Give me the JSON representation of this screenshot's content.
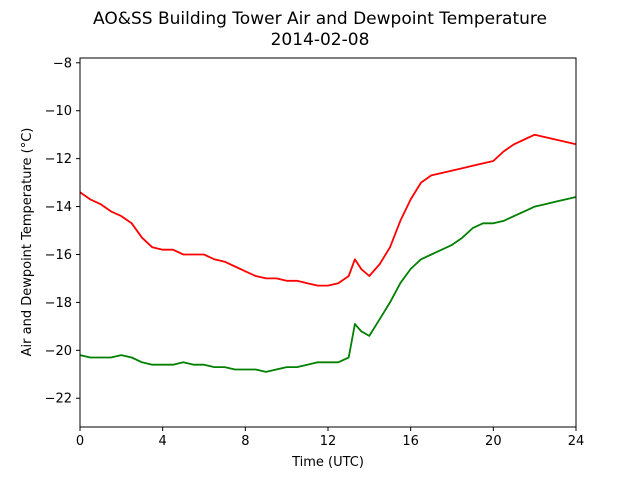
{
  "chart_data": {
    "type": "line",
    "title": "AO&SS Building Tower Air and Dewpoint Temperature",
    "subtitle": "2014-02-08",
    "xlabel": "Time (UTC)",
    "ylabel": "Air and Dewpoint Temperature (°C)",
    "xlim": [
      0,
      24
    ],
    "ylim": [
      -23.2,
      -7.8
    ],
    "xticks": [
      0,
      4,
      8,
      12,
      16,
      20,
      24
    ],
    "yticks": [
      -22,
      -20,
      -18,
      -16,
      -14,
      -12,
      -10,
      -8
    ],
    "grid": false,
    "legend": "none",
    "series": [
      {
        "color": "#ff0000",
        "x": [
          0,
          0.5,
          1,
          1.5,
          2,
          2.5,
          3,
          3.5,
          4,
          4.5,
          5,
          5.5,
          6,
          6.5,
          7,
          7.5,
          8,
          8.5,
          9,
          9.5,
          10,
          10.5,
          11,
          11.5,
          12,
          12.5,
          13,
          13.3,
          13.6,
          14,
          14.5,
          15,
          15.5,
          16,
          16.5,
          17,
          17.5,
          18,
          18.5,
          19,
          19.5,
          20,
          20.5,
          21,
          21.5,
          22,
          22.5,
          23,
          23.5,
          24
        ],
        "values": [
          -13.4,
          -13.7,
          -13.9,
          -14.2,
          -14.4,
          -14.7,
          -15.3,
          -15.7,
          -15.8,
          -15.8,
          -16.0,
          -16.0,
          -16.0,
          -16.2,
          -16.3,
          -16.5,
          -16.7,
          -16.9,
          -17.0,
          -17.0,
          -17.1,
          -17.1,
          -17.2,
          -17.3,
          -17.3,
          -17.2,
          -16.9,
          -16.2,
          -16.6,
          -16.9,
          -16.4,
          -15.7,
          -14.6,
          -13.7,
          -13.0,
          -12.7,
          -12.6,
          -12.5,
          -12.4,
          -12.3,
          -12.2,
          -12.1,
          -11.7,
          -11.4,
          -11.2,
          -11.0,
          -11.1,
          -11.2,
          -11.3,
          -11.4
        ]
      },
      {
        "color": "#008000",
        "x": [
          0,
          0.5,
          1,
          1.5,
          2,
          2.5,
          3,
          3.5,
          4,
          4.5,
          5,
          5.5,
          6,
          6.5,
          7,
          7.5,
          8,
          8.5,
          9,
          9.5,
          10,
          10.5,
          11,
          11.5,
          12,
          12.5,
          13,
          13.3,
          13.6,
          14,
          14.5,
          15,
          15.5,
          16,
          16.5,
          17,
          17.5,
          18,
          18.5,
          19,
          19.5,
          20,
          20.5,
          21,
          21.5,
          22,
          22.5,
          23,
          23.5,
          24
        ],
        "values": [
          -20.2,
          -20.3,
          -20.3,
          -20.3,
          -20.2,
          -20.3,
          -20.5,
          -20.6,
          -20.6,
          -20.6,
          -20.5,
          -20.6,
          -20.6,
          -20.7,
          -20.7,
          -20.8,
          -20.8,
          -20.8,
          -20.9,
          -20.8,
          -20.7,
          -20.7,
          -20.6,
          -20.5,
          -20.5,
          -20.5,
          -20.3,
          -18.9,
          -19.2,
          -19.4,
          -18.7,
          -18.0,
          -17.2,
          -16.6,
          -16.2,
          -16.0,
          -15.8,
          -15.6,
          -15.3,
          -14.9,
          -14.7,
          -14.7,
          -14.6,
          -14.4,
          -14.2,
          -14.0,
          -13.9,
          -13.8,
          -13.7,
          -13.6
        ]
      }
    ]
  }
}
